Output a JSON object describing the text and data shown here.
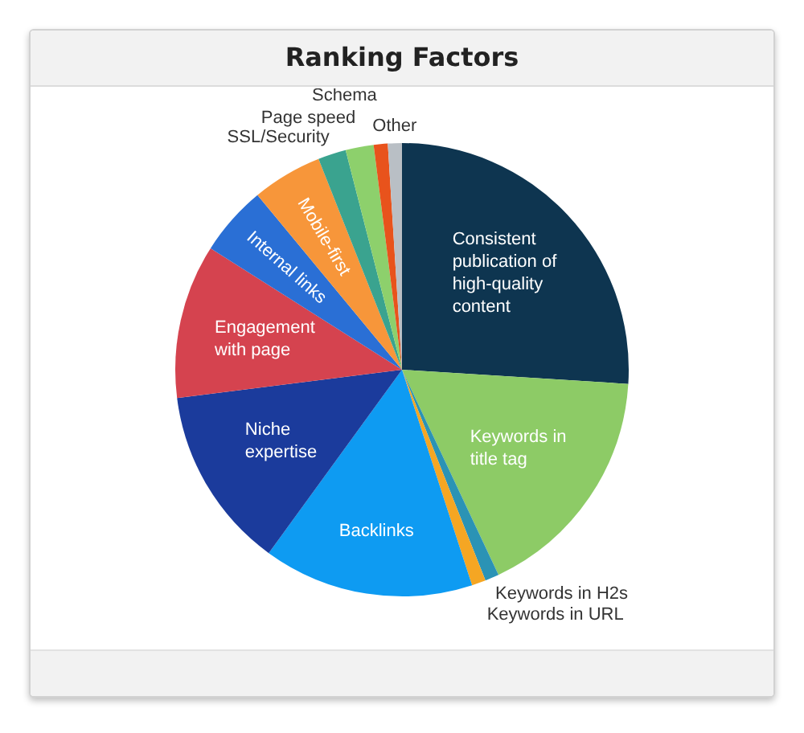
{
  "chart_data": {
    "type": "pie",
    "title": "Ranking Factors",
    "categories": [
      "Consistent publication of high-quality content",
      "Keywords in title tag",
      "Keywords in H2s",
      "Keywords in URL",
      "Backlinks",
      "Niche expertise",
      "Engagement with page",
      "Internal links",
      "Mobile-first",
      "SSL/Security",
      "Page speed",
      "Schema",
      "Other"
    ],
    "values": [
      26,
      17,
      1,
      1,
      15,
      13,
      11,
      5,
      5,
      2,
      2,
      1,
      1
    ],
    "colors": [
      "#0e3550",
      "#8dcb66",
      "#2b93b5",
      "#f5a623",
      "#0e9bf2",
      "#1b3b9c",
      "#d5434f",
      "#2a6fd5",
      "#f7963a",
      "#3aa38f",
      "#8dd06c",
      "#e8531c",
      "#b9bfc5"
    ]
  }
}
